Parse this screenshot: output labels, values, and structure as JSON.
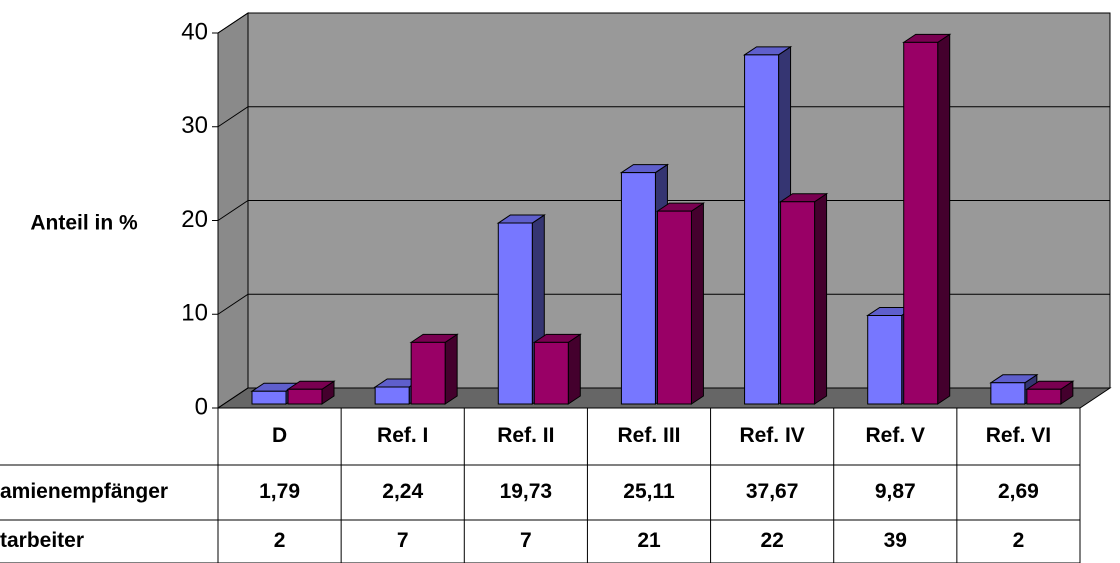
{
  "chart_data": {
    "type": "bar3d",
    "y_label": "Anteil in %",
    "categories": [
      "D",
      "Ref. I",
      "Ref. II",
      "Ref. III",
      "Ref. IV",
      "Ref. V",
      "Ref. VI"
    ],
    "series": [
      {
        "name": "amienempfänger",
        "color": "#7777ff",
        "values": [
          1.79,
          2.24,
          19.73,
          25.11,
          37.67,
          9.87,
          2.69
        ],
        "value_labels": [
          "1,79",
          "2,24",
          "19,73",
          "25,11",
          "37,67",
          "9,87",
          "2,69"
        ]
      },
      {
        "name": "tarbeiter",
        "color": "#990066",
        "values": [
          2,
          7,
          7,
          21,
          22,
          39,
          2
        ]
      }
    ],
    "ylim": [
      0,
      40
    ],
    "yticks": [
      0,
      10,
      20,
      30,
      40
    ],
    "grid": true
  }
}
